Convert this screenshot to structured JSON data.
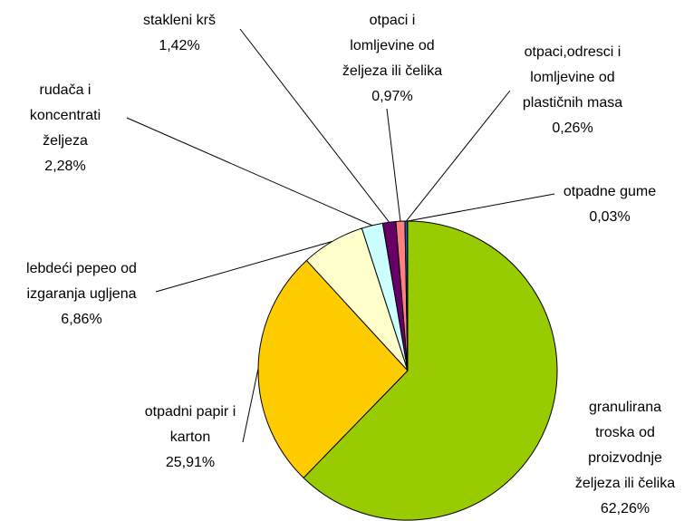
{
  "chart_data": {
    "type": "pie",
    "categories": [
      "granulirana\ntroska od\nproizvodnje\nželjeza ili čelika",
      "otpadni papir i\nkarton",
      "lebdeći pepeo od\nizgaranja ugljena",
      "rudača i\nkoncentrati\nželjeza",
      "stakleni krš",
      "otpaci i\nlomljevine od\nželjeza ili čelika",
      "otpaci,odresci i\nlomljevine od\nplastičnih masa",
      "otpadne gume"
    ],
    "values": [
      62.26,
      25.91,
      6.86,
      2.28,
      1.42,
      0.97,
      0.26,
      0.03
    ],
    "value_labels": [
      "62,26%",
      "25,91%",
      "6,86%",
      "2,28%",
      "1,42%",
      "0,97%",
      "0,26%",
      "0,03%"
    ],
    "colors": [
      "#99cc00",
      "#ffcc00",
      "#ffffcc",
      "#ccffff",
      "#660066",
      "#ff8080",
      "#0066cc",
      "#ccccff"
    ]
  }
}
